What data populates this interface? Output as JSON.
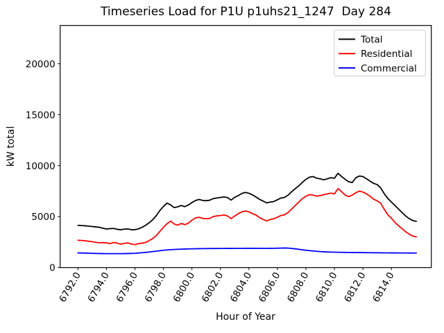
{
  "title": "Timeseries Load for P1U p1uhs21_1247  Day 284",
  "chart_data": {
    "type": "line",
    "title": "Timeseries Load for P1U p1uhs21_1247  Day 284",
    "xlabel": "Hour of Year",
    "ylabel": "kW total",
    "xlim": [
      6790.75,
      6816.8
    ],
    "ylim": [
      0,
      23750
    ],
    "grid": false,
    "legend_position": "upper right",
    "x_ticks": [
      {
        "value": 6792,
        "label": "6792.0"
      },
      {
        "value": 6794,
        "label": "6794.0"
      },
      {
        "value": 6796,
        "label": "6796.0"
      },
      {
        "value": 6798,
        "label": "6798.0"
      },
      {
        "value": 6800,
        "label": "6800.0"
      },
      {
        "value": 6802,
        "label": "6802.0"
      },
      {
        "value": 6804,
        "label": "6804.0"
      },
      {
        "value": 6806,
        "label": "6806.0"
      },
      {
        "value": 6808,
        "label": "6808.0"
      },
      {
        "value": 6810,
        "label": "6810.0"
      },
      {
        "value": 6812,
        "label": "6812.0"
      },
      {
        "value": 6814,
        "label": "6814.0"
      }
    ],
    "y_ticks": [
      {
        "value": 0,
        "label": "0"
      },
      {
        "value": 5000,
        "label": "5000"
      },
      {
        "value": 10000,
        "label": "10000"
      },
      {
        "value": 15000,
        "label": "15000"
      },
      {
        "value": 20000,
        "label": "20000"
      }
    ],
    "x": {
      "start": 6792.0,
      "step": 0.25,
      "count": 96
    },
    "series": [
      {
        "name": "Total",
        "color": "#000000",
        "values": [
          4150,
          4120,
          4100,
          4060,
          4030,
          3990,
          3950,
          3860,
          3780,
          3820,
          3840,
          3760,
          3710,
          3770,
          3790,
          3710,
          3720,
          3800,
          3950,
          4150,
          4400,
          4700,
          5100,
          5600,
          6000,
          6320,
          6150,
          5880,
          5960,
          6090,
          5980,
          6140,
          6380,
          6580,
          6680,
          6590,
          6560,
          6610,
          6770,
          6830,
          6880,
          6930,
          6870,
          6620,
          6890,
          7060,
          7270,
          7370,
          7290,
          7130,
          6920,
          6690,
          6520,
          6350,
          6430,
          6480,
          6650,
          6820,
          6890,
          7110,
          7440,
          7740,
          8020,
          8360,
          8650,
          8870,
          8930,
          8770,
          8710,
          8610,
          8710,
          8820,
          8760,
          9250,
          8940,
          8660,
          8420,
          8340,
          8810,
          8980,
          8930,
          8710,
          8480,
          8260,
          8140,
          7810,
          7240,
          6780,
          6430,
          6090,
          5750,
          5400,
          5060,
          4800,
          4610,
          4540
        ]
      },
      {
        "name": "Residential",
        "color": "#ff0000",
        "values": [
          2680,
          2660,
          2630,
          2580,
          2540,
          2480,
          2430,
          2450,
          2420,
          2350,
          2460,
          2400,
          2290,
          2380,
          2420,
          2310,
          2250,
          2350,
          2390,
          2470,
          2650,
          2850,
          3150,
          3550,
          3950,
          4300,
          4550,
          4280,
          4160,
          4330,
          4210,
          4360,
          4650,
          4870,
          4940,
          4830,
          4790,
          4820,
          5010,
          5070,
          5110,
          5160,
          5060,
          4800,
          5060,
          5290,
          5470,
          5550,
          5470,
          5290,
          5150,
          4890,
          4720,
          4570,
          4720,
          4790,
          4940,
          5110,
          5180,
          5400,
          5750,
          6090,
          6430,
          6770,
          7000,
          7160,
          7110,
          7010,
          7060,
          7150,
          7230,
          7300,
          7230,
          7750,
          7450,
          7120,
          6960,
          7110,
          7340,
          7500,
          7410,
          7230,
          7000,
          6710,
          6540,
          6320,
          5710,
          5180,
          4840,
          4430,
          4100,
          3810,
          3510,
          3290,
          3090,
          3010
        ]
      },
      {
        "name": "Commercial",
        "color": "#0000ff",
        "values": [
          1440,
          1430,
          1420,
          1410,
          1395,
          1385,
          1378,
          1372,
          1368,
          1365,
          1364,
          1365,
          1368,
          1372,
          1378,
          1388,
          1402,
          1430,
          1458,
          1490,
          1528,
          1568,
          1612,
          1658,
          1700,
          1732,
          1756,
          1776,
          1794,
          1810,
          1822,
          1832,
          1840,
          1848,
          1854,
          1860,
          1864,
          1868,
          1871,
          1873,
          1876,
          1878,
          1880,
          1882,
          1884,
          1886,
          1887,
          1888,
          1888,
          1888,
          1888,
          1887,
          1886,
          1886,
          1888,
          1892,
          1898,
          1908,
          1922,
          1908,
          1878,
          1838,
          1792,
          1744,
          1700,
          1662,
          1628,
          1597,
          1570,
          1549,
          1533,
          1520,
          1510,
          1502,
          1496,
          1490,
          1485,
          1480,
          1476,
          1472,
          1468,
          1464,
          1460,
          1456,
          1452,
          1448,
          1445,
          1442,
          1440,
          1438,
          1436,
          1434,
          1432,
          1430,
          1428,
          1426
        ]
      }
    ],
    "legend": {
      "entries": [
        "Total",
        "Residential",
        "Commercial"
      ]
    }
  }
}
